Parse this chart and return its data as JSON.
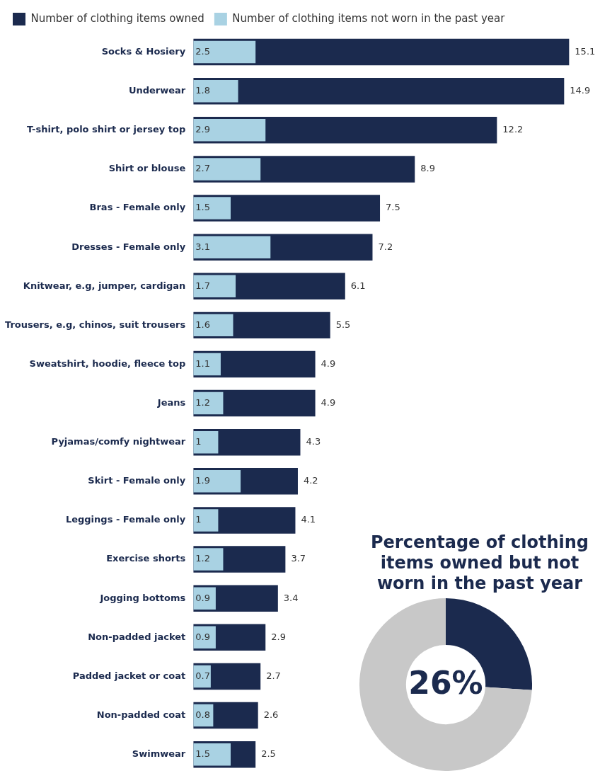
{
  "chart_data": [
    {
      "type": "bar",
      "orientation": "horizontal",
      "categories": [
        "Socks & Hosiery",
        "Underwear",
        "T-shirt, polo shirt or jersey top",
        "Shirt or blouse",
        "Bras - Female only",
        "Dresses - Female only",
        "Knitwear, e.g, jumper, cardigan",
        "Trousers, e.g, chinos, suit trousers",
        "Sweatshirt, hoodie, fleece top",
        "Jeans",
        "Pyjamas/comfy nightwear",
        "Skirt - Female only",
        "Leggings - Female only",
        "Exercise shorts",
        "Jogging bottoms",
        "Non-padded jacket",
        "Padded jacket or coat",
        "Non-padded coat",
        "Swimwear"
      ],
      "series": [
        {
          "name": "Number of clothing items owned",
          "color": "#1b2a4e",
          "values": [
            15.1,
            14.9,
            12.2,
            8.9,
            7.5,
            7.2,
            6.1,
            5.5,
            4.9,
            4.9,
            4.3,
            4.2,
            4.1,
            3.7,
            3.4,
            2.9,
            2.7,
            2.6,
            2.5
          ]
        },
        {
          "name": "Number of clothing items not worn in the past year",
          "color": "#a9d2e3",
          "values": [
            2.5,
            1.8,
            2.9,
            2.7,
            1.5,
            3.1,
            1.7,
            1.6,
            1.1,
            1.2,
            1,
            1.9,
            1,
            1.2,
            0.9,
            0.9,
            0.7,
            0.8,
            1.5
          ]
        }
      ],
      "data_labels": true,
      "legend": "top left",
      "tick_labels": "y"
    },
    {
      "type": "donut",
      "title": "Percentage of clothing items owned but not worn in the past year",
      "categories": [
        null,
        null
      ],
      "values": [
        26,
        74
      ],
      "colors": [
        "#1b2a4e",
        "#c8c8c8"
      ],
      "value_labels": [
        "26%",
        null
      ],
      "legend": false
    }
  ]
}
